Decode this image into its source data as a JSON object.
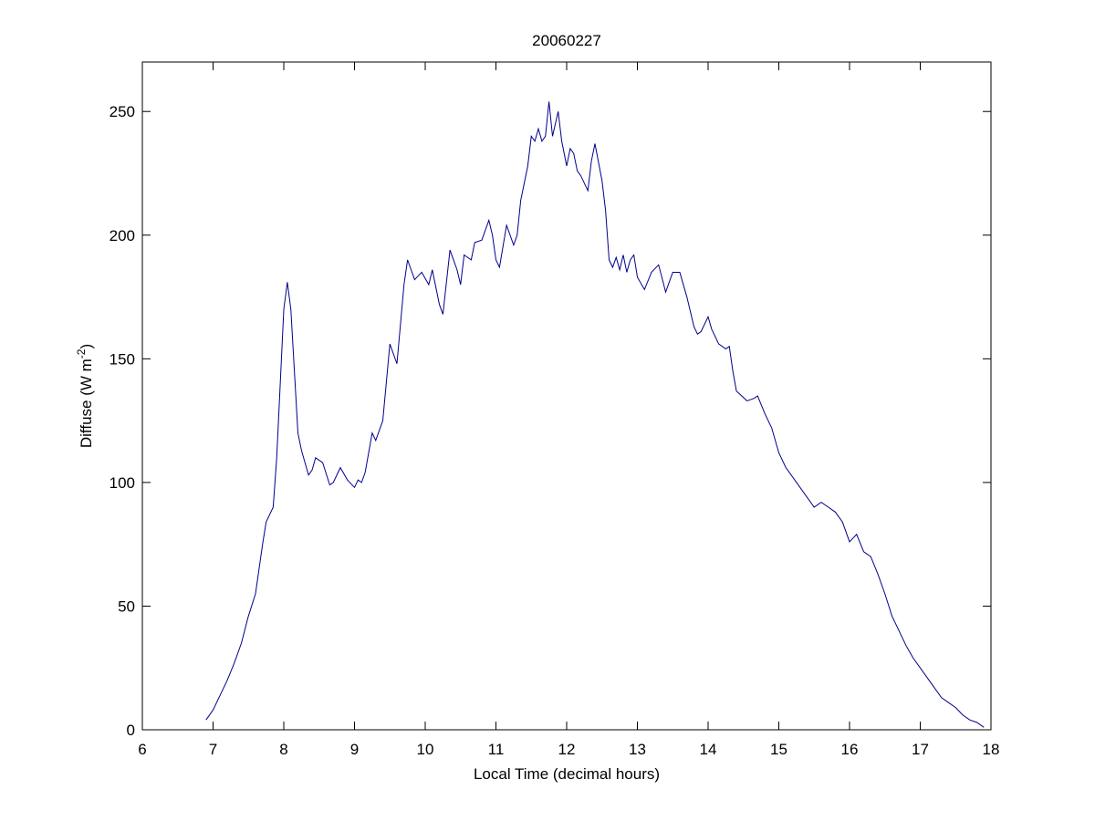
{
  "chart_data": {
    "type": "line",
    "title": "20060227",
    "xlabel": "Local Time (decimal hours)",
    "ylabel": {
      "text": "Diffuse (W m",
      "superscript": "-2",
      "suffix": ")"
    },
    "xlim": [
      6,
      18
    ],
    "ylim": [
      0,
      270
    ],
    "xticks": [
      6,
      7,
      8,
      9,
      10,
      11,
      12,
      13,
      14,
      15,
      16,
      17,
      18
    ],
    "yticks": [
      0,
      50,
      100,
      150,
      200,
      250
    ],
    "x": [
      6.9,
      7.0,
      7.1,
      7.2,
      7.3,
      7.4,
      7.5,
      7.6,
      7.7,
      7.75,
      7.85,
      7.9,
      7.95,
      8.0,
      8.05,
      8.1,
      8.15,
      8.2,
      8.25,
      8.3,
      8.35,
      8.4,
      8.45,
      8.55,
      8.65,
      8.7,
      8.8,
      8.9,
      9.0,
      9.05,
      9.1,
      9.15,
      9.25,
      9.3,
      9.4,
      9.5,
      9.6,
      9.7,
      9.75,
      9.85,
      9.95,
      10.05,
      10.1,
      10.2,
      10.25,
      10.35,
      10.45,
      10.5,
      10.55,
      10.65,
      10.7,
      10.8,
      10.9,
      10.95,
      11.0,
      11.05,
      11.15,
      11.25,
      11.3,
      11.35,
      11.45,
      11.5,
      11.55,
      11.6,
      11.65,
      11.7,
      11.75,
      11.8,
      11.88,
      11.93,
      12.0,
      12.05,
      12.1,
      12.15,
      12.2,
      12.3,
      12.35,
      12.4,
      12.5,
      12.55,
      12.6,
      12.65,
      12.7,
      12.75,
      12.8,
      12.85,
      12.9,
      12.95,
      13.0,
      13.1,
      13.2,
      13.3,
      13.4,
      13.5,
      13.6,
      13.7,
      13.8,
      13.85,
      13.9,
      14.0,
      14.05,
      14.15,
      14.25,
      14.3,
      14.35,
      14.4,
      14.55,
      14.65,
      14.7,
      14.8,
      14.9,
      15.0,
      15.1,
      15.2,
      15.3,
      15.4,
      15.5,
      15.6,
      15.7,
      15.8,
      15.9,
      16.0,
      16.1,
      16.2,
      16.3,
      16.4,
      16.5,
      16.6,
      16.7,
      16.8,
      16.9,
      17.0,
      17.1,
      17.2,
      17.3,
      17.4,
      17.5,
      17.6,
      17.7,
      17.8,
      17.9
    ],
    "series": [
      {
        "name": "Diffuse",
        "color": "#00008b",
        "values": [
          4,
          8,
          14,
          20,
          27,
          35,
          46,
          55,
          75,
          84,
          90,
          110,
          140,
          170,
          181,
          170,
          145,
          120,
          113,
          108,
          103,
          105,
          110,
          108,
          99,
          100,
          106,
          101,
          98,
          101,
          100,
          104,
          120,
          117,
          125,
          156,
          148,
          180,
          190,
          182,
          185,
          180,
          186,
          172,
          168,
          194,
          186,
          180,
          192,
          190,
          197,
          198,
          206,
          200,
          190,
          187,
          204,
          196,
          200,
          214,
          228,
          240,
          238,
          243,
          238,
          240,
          254,
          240,
          250,
          238,
          228,
          235,
          233,
          226,
          224,
          218,
          230,
          237,
          222,
          210,
          190,
          187,
          191,
          186,
          192,
          185,
          190,
          192,
          183,
          178,
          185,
          188,
          177,
          185,
          185,
          175,
          163,
          160,
          161,
          167,
          162,
          156,
          154,
          155,
          145,
          137,
          133,
          134,
          135,
          128,
          122,
          112,
          106,
          102,
          98,
          94,
          90,
          92,
          90,
          88,
          84,
          76,
          79,
          72,
          70,
          63,
          55,
          46,
          40,
          34,
          29,
          25,
          21,
          17,
          13,
          11,
          9,
          6,
          4,
          3,
          1
        ]
      }
    ]
  }
}
